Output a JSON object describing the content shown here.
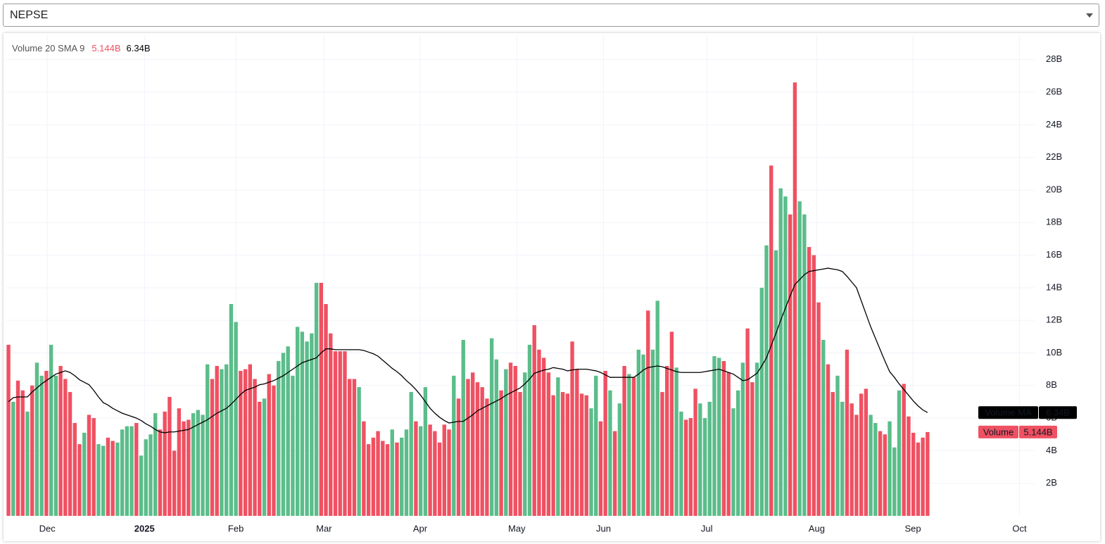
{
  "selector": "NEPSE",
  "chart_data": {
    "type": "bar",
    "legend_title": "Volume 20 SMA 9",
    "categories": [
      null,
      null,
      null,
      null,
      null,
      null,
      null,
      null,
      null,
      null,
      null,
      null,
      null,
      null,
      null,
      null,
      null,
      null,
      null,
      null,
      null,
      null,
      null,
      null,
      null,
      null,
      null,
      null,
      null,
      null,
      null,
      null,
      null,
      null,
      null,
      null,
      null,
      null,
      null,
      null,
      null,
      null,
      null,
      null,
      null,
      null,
      null,
      null,
      null,
      null,
      null,
      null,
      null,
      null,
      null,
      null,
      null,
      null,
      null,
      null,
      null,
      null,
      null,
      null,
      null,
      null,
      null,
      null,
      null,
      null,
      null,
      null,
      null,
      null,
      null,
      null,
      null,
      null,
      null,
      null,
      null,
      null,
      null,
      null,
      null,
      null,
      null,
      null,
      null,
      null,
      null,
      null,
      null,
      null,
      null,
      null,
      null,
      null,
      null,
      null,
      null,
      null,
      null,
      null,
      null,
      null,
      null,
      null,
      null,
      null,
      null,
      null,
      null,
      null,
      null,
      null,
      null,
      null,
      null,
      null,
      null,
      null,
      null,
      null,
      null,
      null,
      null,
      null,
      null,
      null,
      null,
      null,
      null,
      null,
      null,
      null,
      null,
      null,
      null,
      null,
      null,
      null,
      null,
      null,
      null,
      null,
      null,
      null,
      null,
      null,
      null,
      null,
      null,
      null,
      null,
      null,
      null,
      null,
      null,
      null,
      null,
      null,
      null,
      null,
      null,
      null,
      null,
      null,
      null,
      null,
      null,
      null,
      null,
      null,
      null,
      null,
      null,
      null,
      null,
      null,
      null,
      null,
      null,
      null,
      null,
      null,
      null,
      null,
      null,
      null,
      null,
      null,
      null,
      null,
      null
    ],
    "xlim": [
      -0.6,
      216.6
    ],
    "xticks": [
      {
        "value": 8.2,
        "label": "Dec"
      },
      {
        "value": 28.7,
        "label": "2025",
        "bold": true
      },
      {
        "value": 48,
        "label": "Feb"
      },
      {
        "value": 66.6,
        "label": "Mar"
      },
      {
        "value": 86.9,
        "label": "Apr"
      },
      {
        "value": 107.3,
        "label": "May"
      },
      {
        "value": 125.6,
        "label": "Jun"
      },
      {
        "value": 147.4,
        "label": "Jul"
      },
      {
        "value": 170.6,
        "label": "Aug"
      },
      {
        "value": 190.9,
        "label": "Sep"
      },
      {
        "value": 213.4,
        "label": "Oct"
      }
    ],
    "ylim": [
      0,
      29.5
    ],
    "yticks": [
      {
        "value": 2,
        "label": "2B"
      },
      {
        "value": 4,
        "label": "4B"
      },
      {
        "value": 6,
        "label": "6B"
      },
      {
        "value": 8,
        "label": "8B"
      },
      {
        "value": 10,
        "label": "10B"
      },
      {
        "value": 12,
        "label": "12B"
      },
      {
        "value": 14,
        "label": "14B"
      },
      {
        "value": 16,
        "label": "16B"
      },
      {
        "value": 18,
        "label": "18B"
      },
      {
        "value": 20,
        "label": "20B"
      },
      {
        "value": 22,
        "label": "22B"
      },
      {
        "value": 24,
        "label": "24B"
      },
      {
        "value": 26,
        "label": "26B"
      },
      {
        "value": 28,
        "label": "28B"
      }
    ],
    "grid": true,
    "series": [
      {
        "name": "Volume",
        "type": "bar",
        "last_value_label": "5.144B",
        "values": [
          10.5,
          7.0,
          8.3,
          7.7,
          6.4,
          8.0,
          9.4,
          8.6,
          8.9,
          10.5,
          8.6,
          9.2,
          8.4,
          7.6,
          5.7,
          4.4,
          5.1,
          6.2,
          6.0,
          4.4,
          4.3,
          4.8,
          4.6,
          4.5,
          5.3,
          5.5,
          5.5,
          5.7,
          3.7,
          4.7,
          5.0,
          6.3,
          5.3,
          6.4,
          7.3,
          4.0,
          6.6,
          5.8,
          5.9,
          6.3,
          6.5,
          6.2,
          9.3,
          8.4,
          9.2,
          9.0,
          9.3,
          13.0,
          11.9,
          8.9,
          9.0,
          9.3,
          8.4,
          7.0,
          7.2,
          8.7,
          8.0,
          9.5,
          10.0,
          10.4,
          8.6,
          11.6,
          11.3,
          10.7,
          11.2,
          14.3,
          14.3,
          13.0,
          11.2,
          10.1,
          10.1,
          10.1,
          8.4,
          8.4,
          7.9,
          5.8,
          4.4,
          4.8,
          5.2,
          4.6,
          4.4,
          5.3,
          4.5,
          4.8,
          5.3,
          7.6,
          5.8,
          5.5,
          7.9,
          5.6,
          5.2,
          4.5,
          5.6,
          5.3,
          8.6,
          7.2,
          10.8,
          8.4,
          8.8,
          8.2,
          7.9,
          7.2,
          10.9,
          9.6,
          7.7,
          9.0,
          9.4,
          9.2,
          7.6,
          8.8,
          10.5,
          11.7,
          10.2,
          9.7,
          8.8,
          7.4,
          8.5,
          7.6,
          7.5,
          10.7,
          9.0,
          7.5,
          7.4,
          6.6,
          8.6,
          5.8,
          8.9,
          7.7,
          5.2,
          6.9,
          9.2,
          8.7,
          8.5,
          10.2,
          9.9,
          12.6,
          10.2,
          13.2,
          7.6,
          9.2,
          11.3,
          9.1,
          6.4,
          5.9,
          6.0,
          7.8,
          6.9,
          6.0,
          7.0,
          9.8,
          9.7,
          9.5,
          8.8,
          6.6,
          7.7,
          9.4,
          11.5,
          8.2,
          9.4,
          14.0,
          16.6,
          21.5,
          16.3,
          20.1,
          19.6,
          18.5,
          26.6,
          19.3,
          18.5,
          16.5,
          16.0,
          13.1,
          10.8,
          9.3,
          7.6,
          8.6,
          7.0,
          10.2,
          6.9,
          6.2,
          7.5,
          7.8,
          6.2,
          5.7,
          5.2,
          5.0,
          5.8,
          4.2,
          7.7,
          8.1,
          6.1,
          5.1,
          4.5,
          4.8,
          5.144
        ],
        "colors": [
          "#ef5162",
          "#5bbd8a",
          "#ef5162",
          "#ef5162",
          "#5bbd8a",
          "#ef5162",
          "#5bbd8a",
          "#5bbd8a",
          "#ef5162",
          "#5bbd8a",
          "#5bbd8a",
          "#ef5162",
          "#ef5162",
          "#ef5162",
          "#ef5162",
          "#ef5162",
          "#5bbd8a",
          "#ef5162",
          "#ef5162",
          "#5bbd8a",
          "#5bbd8a",
          "#ef5162",
          "#ef5162",
          "#5bbd8a",
          "#5bbd8a",
          "#5bbd8a",
          "#5bbd8a",
          "#ef5162",
          "#5bbd8a",
          "#5bbd8a",
          "#5bbd8a",
          "#5bbd8a",
          "#ef5162",
          "#ef5162",
          "#ef5162",
          "#ef5162",
          "#ef5162",
          "#ef5162",
          "#ef5162",
          "#5bbd8a",
          "#5bbd8a",
          "#5bbd8a",
          "#5bbd8a",
          "#ef5162",
          "#ef5162",
          "#5bbd8a",
          "#5bbd8a",
          "#5bbd8a",
          "#5bbd8a",
          "#ef5162",
          "#ef5162",
          "#ef5162",
          "#ef5162",
          "#ef5162",
          "#5bbd8a",
          "#ef5162",
          "#ef5162",
          "#5bbd8a",
          "#5bbd8a",
          "#5bbd8a",
          "#5bbd8a",
          "#5bbd8a",
          "#5bbd8a",
          "#5bbd8a",
          "#5bbd8a",
          "#5bbd8a",
          "#ef5162",
          "#ef5162",
          "#ef5162",
          "#ef5162",
          "#ef5162",
          "#ef5162",
          "#ef5162",
          "#ef5162",
          "#5bbd8a",
          "#ef5162",
          "#ef5162",
          "#ef5162",
          "#ef5162",
          "#ef5162",
          "#ef5162",
          "#5bbd8a",
          "#ef5162",
          "#5bbd8a",
          "#5bbd8a",
          "#5bbd8a",
          "#ef5162",
          "#5bbd8a",
          "#5bbd8a",
          "#ef5162",
          "#ef5162",
          "#ef5162",
          "#ef5162",
          "#ef5162",
          "#5bbd8a",
          "#ef5162",
          "#5bbd8a",
          "#ef5162",
          "#ef5162",
          "#ef5162",
          "#ef5162",
          "#ef5162",
          "#5bbd8a",
          "#5bbd8a",
          "#ef5162",
          "#5bbd8a",
          "#ef5162",
          "#ef5162",
          "#ef5162",
          "#5bbd8a",
          "#5bbd8a",
          "#ef5162",
          "#ef5162",
          "#ef5162",
          "#ef5162",
          "#ef5162",
          "#5bbd8a",
          "#ef5162",
          "#ef5162",
          "#ef5162",
          "#ef5162",
          "#ef5162",
          "#ef5162",
          "#5bbd8a",
          "#5bbd8a",
          "#ef5162",
          "#ef5162",
          "#5bbd8a",
          "#ef5162",
          "#5bbd8a",
          "#ef5162",
          "#5bbd8a",
          "#ef5162",
          "#5bbd8a",
          "#5bbd8a",
          "#ef5162",
          "#5bbd8a",
          "#5bbd8a",
          "#ef5162",
          "#ef5162",
          "#ef5162",
          "#5bbd8a",
          "#5bbd8a",
          "#ef5162",
          "#ef5162",
          "#ef5162",
          "#5bbd8a",
          "#5bbd8a",
          "#5bbd8a",
          "#5bbd8a",
          "#5bbd8a",
          "#ef5162",
          "#ef5162",
          "#5bbd8a",
          "#5bbd8a",
          "#5bbd8a",
          "#ef5162",
          "#ef5162",
          "#5bbd8a",
          "#5bbd8a",
          "#5bbd8a",
          "#ef5162",
          "#5bbd8a",
          "#5bbd8a",
          "#5bbd8a",
          "#ef5162",
          "#ef5162",
          "#5bbd8a",
          "#5bbd8a",
          "#ef5162",
          "#ef5162",
          "#ef5162",
          "#5bbd8a",
          "#ef5162",
          "#ef5162",
          "#5bbd8a",
          "#5bbd8a",
          "#ef5162",
          "#ef5162",
          "#ef5162",
          "#ef5162",
          "#ef5162",
          "#5bbd8a",
          "#5bbd8a",
          "#ef5162",
          "#ef5162",
          "#5bbd8a",
          "#5bbd8a",
          "#5bbd8a",
          "#ef5162",
          "#ef5162",
          "#ef5162",
          "#ef5162",
          "#ef5162",
          "#ef5162"
        ]
      },
      {
        "name": "Volume MA",
        "type": "line",
        "color": "#000000",
        "last_value_label": "6.34B",
        "values": [
          7.0,
          7.25,
          7.3,
          7.3,
          7.3,
          7.6,
          7.85,
          8.1,
          8.3,
          8.5,
          8.7,
          8.8,
          8.9,
          8.8,
          8.6,
          8.35,
          8.2,
          8.05,
          7.7,
          7.3,
          6.95,
          6.8,
          6.6,
          6.45,
          6.3,
          6.2,
          6.1,
          6.0,
          5.85,
          5.65,
          5.5,
          5.3,
          5.15,
          5.1,
          5.15,
          5.15,
          5.2,
          5.25,
          5.3,
          5.45,
          5.6,
          5.75,
          5.9,
          6.1,
          6.3,
          6.45,
          6.6,
          6.85,
          7.15,
          7.45,
          7.7,
          7.8,
          7.9,
          8.05,
          8.1,
          8.2,
          8.3,
          8.45,
          8.6,
          8.8,
          9.0,
          9.2,
          9.4,
          9.5,
          9.6,
          9.7,
          10.0,
          10.25,
          10.25,
          10.2,
          10.2,
          10.2,
          10.2,
          10.2,
          10.2,
          10.15,
          10.05,
          9.95,
          9.8,
          9.55,
          9.3,
          9.05,
          8.85,
          8.6,
          8.3,
          8.05,
          7.75,
          7.4,
          7.0,
          6.6,
          6.3,
          6.05,
          5.85,
          5.7,
          5.75,
          5.8,
          5.8,
          6.0,
          6.2,
          6.45,
          6.6,
          6.75,
          6.9,
          7.05,
          7.2,
          7.4,
          7.55,
          7.7,
          7.85,
          8.1,
          8.4,
          8.75,
          8.85,
          8.95,
          9.0,
          9.1,
          9.05,
          9.0,
          8.9,
          8.95,
          9.0,
          9.0,
          9.0,
          8.95,
          8.9,
          8.8,
          8.65,
          8.5,
          8.5,
          8.5,
          8.5,
          8.5,
          8.5,
          8.7,
          8.95,
          9.1,
          9.15,
          9.2,
          9.15,
          9.05,
          8.95,
          8.85,
          8.8,
          8.8,
          8.8,
          8.8,
          8.8,
          8.85,
          8.9,
          8.95,
          9.0,
          8.9,
          8.8,
          8.7,
          8.5,
          8.3,
          8.35,
          8.55,
          8.75,
          9.2,
          9.7,
          10.45,
          11.2,
          12.0,
          12.75,
          13.5,
          14.2,
          14.5,
          14.8,
          15.0,
          15.05,
          15.1,
          15.15,
          15.2,
          15.15,
          15.1,
          15.0,
          14.7,
          14.35,
          14.0,
          13.2,
          12.4,
          11.6,
          10.9,
          10.2,
          9.5,
          8.85,
          8.5,
          8.1,
          7.75,
          7.4,
          7.05,
          6.75,
          6.5,
          6.34
        ]
      }
    ]
  }
}
